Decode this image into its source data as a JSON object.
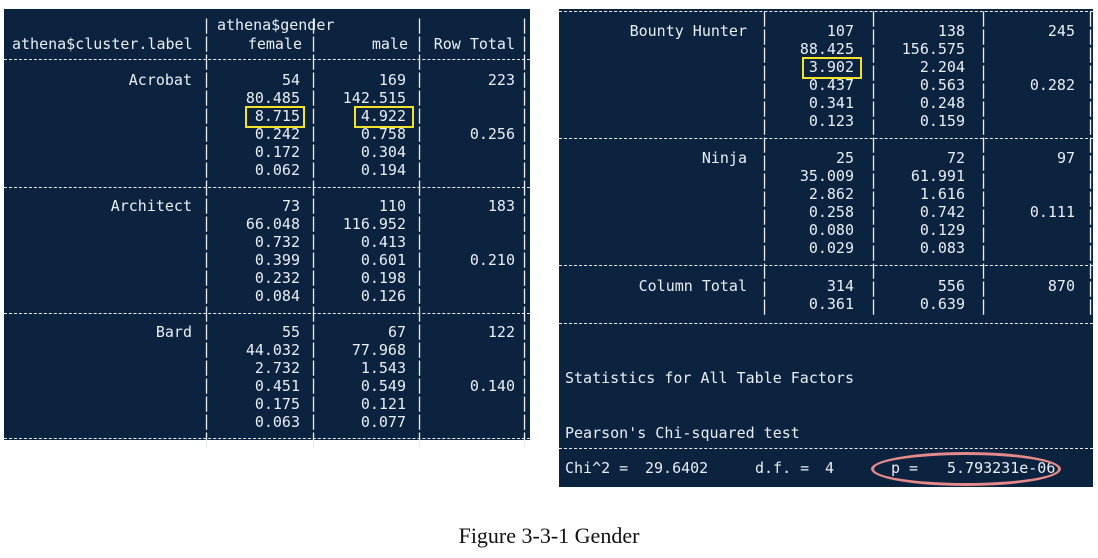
{
  "left": {
    "header": {
      "row_var": "athena$cluster.label",
      "col_var": "athena$gender",
      "col1": "female",
      "col2": "male",
      "total": "Row Total"
    },
    "groups": [
      {
        "label": "Acrobat",
        "female": [
          "54",
          "80.485",
          "8.715",
          "0.242",
          "0.172",
          "0.062"
        ],
        "male": [
          "169",
          "142.515",
          "4.922",
          "0.758",
          "0.304",
          "0.194"
        ],
        "row_total": "223",
        "row_prop": "0.256"
      },
      {
        "label": "Architect",
        "female": [
          "73",
          "66.048",
          "0.732",
          "0.399",
          "0.232",
          "0.084"
        ],
        "male": [
          "110",
          "116.952",
          "0.413",
          "0.601",
          "0.198",
          "0.126"
        ],
        "row_total": "183",
        "row_prop": "0.210"
      },
      {
        "label": "Bard",
        "female": [
          "55",
          "44.032",
          "2.732",
          "0.451",
          "0.175",
          "0.063"
        ],
        "male": [
          "67",
          "77.968",
          "1.543",
          "0.549",
          "0.121",
          "0.077"
        ],
        "row_total": "122",
        "row_prop": "0.140"
      }
    ]
  },
  "right": {
    "groups": [
      {
        "label": "Bounty Hunter",
        "female": [
          "107",
          "88.425",
          "3.902",
          "0.437",
          "0.341",
          "0.123"
        ],
        "male": [
          "138",
          "156.575",
          "2.204",
          "0.563",
          "0.248",
          "0.159"
        ],
        "row_total": "245",
        "row_prop": "0.282"
      },
      {
        "label": "Ninja",
        "female": [
          "25",
          "35.009",
          "2.862",
          "0.258",
          "0.080",
          "0.029"
        ],
        "male": [
          "72",
          "61.991",
          "1.616",
          "0.742",
          "0.129",
          "0.083"
        ],
        "row_total": "97",
        "row_prop": "0.111"
      }
    ],
    "column_total": {
      "label": "Column Total",
      "female": [
        "314",
        "0.361"
      ],
      "male": [
        "556",
        "0.639"
      ],
      "total": "870"
    },
    "stats_title": "Statistics for All Table Factors",
    "test_name": "Pearson's Chi-squared test",
    "chi_label": "Chi^2 =",
    "chi_value": "29.6402",
    "df_label": "d.f. =",
    "df_value": "4",
    "p_label": "p =",
    "p_value": "5.793231e-06"
  },
  "caption": "Figure 3-3-1 Gender",
  "colors": {
    "terminal_bg": "#0c2340",
    "text": "#e9eef5",
    "highlight_box": "#f2e22c",
    "highlight_oval": "#e48a8a"
  }
}
